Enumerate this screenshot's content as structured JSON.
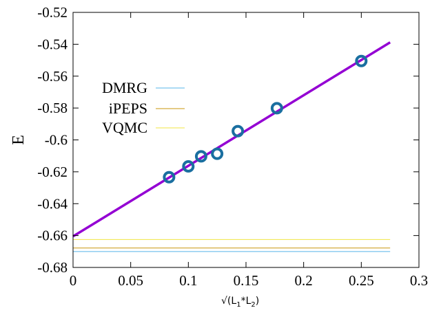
{
  "chart_data": {
    "type": "scatter",
    "title": "",
    "xlabel": "√(L1*L2)",
    "xlabel_parts": {
      "root": "√(L",
      "sub1": "1",
      "mid": "*L",
      "sub2": "2",
      "close": ")"
    },
    "ylabel": "E",
    "xlim": [
      0,
      0.3
    ],
    "ylim": [
      -0.68,
      -0.52
    ],
    "xticks": [
      0,
      0.05,
      0.1,
      0.15,
      0.2,
      0.25,
      0.3
    ],
    "xtick_labels": [
      "0",
      "0.05",
      "0.1",
      "0.15",
      "0.2",
      "0.25",
      "0.3"
    ],
    "yticks": [
      -0.68,
      -0.66,
      -0.64,
      -0.62,
      -0.6,
      -0.58,
      -0.56,
      -0.54,
      -0.52
    ],
    "ytick_labels": [
      "-0.68",
      "-0.66",
      "-0.64",
      "-0.62",
      "-0.6",
      "-0.58",
      "-0.56",
      "-0.54",
      "-0.52"
    ],
    "grid": false,
    "legend_position": "upper-left",
    "points": {
      "color": "#1a6fa0",
      "x": [
        0.0833,
        0.1,
        0.1111,
        0.125,
        0.1429,
        0.1768,
        0.25
      ],
      "y": [
        -0.6234,
        -0.6166,
        -0.6103,
        -0.6087,
        -0.5945,
        -0.5801,
        -0.5505
      ]
    },
    "fit_line": {
      "color": "#9400d3",
      "x": [
        0,
        0.275
      ],
      "y": [
        -0.6605,
        -0.5388
      ]
    },
    "series": [
      {
        "name": "DMRG",
        "color": "#56b4e9",
        "y": -0.67,
        "x": [
          0,
          0.275
        ]
      },
      {
        "name": "iPEPS",
        "color": "#c8960a",
        "y": -0.6678,
        "x": [
          0,
          0.275
        ]
      },
      {
        "name": "VQMC",
        "color": "#f0e442",
        "y": -0.6625,
        "x": [
          0,
          0.275
        ]
      }
    ]
  }
}
